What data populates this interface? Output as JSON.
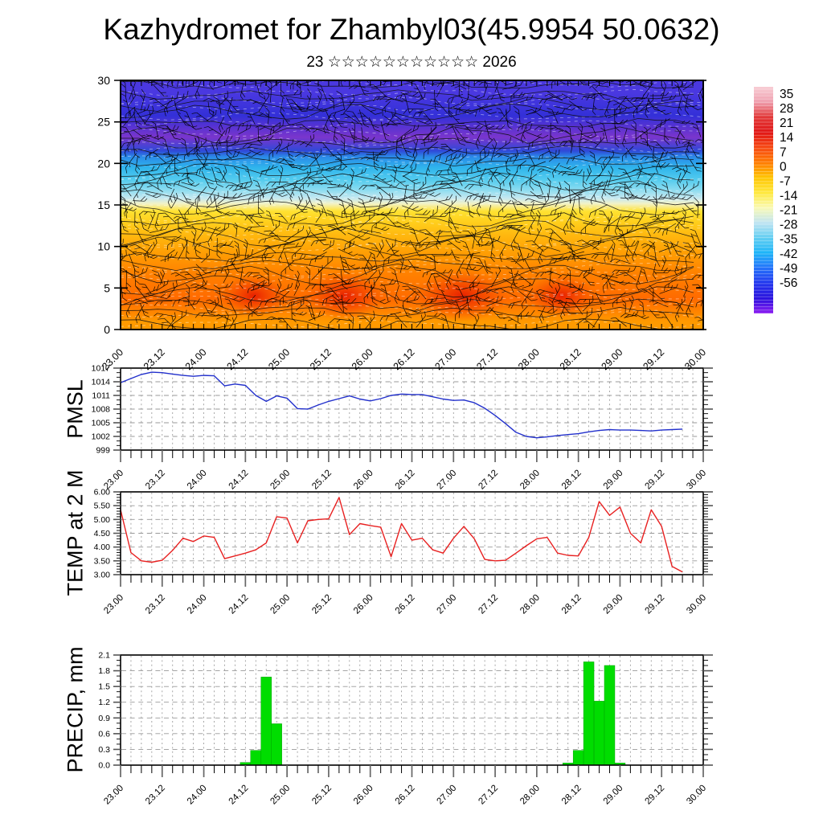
{
  "header": {
    "title": "Kazhydromet for Zhambyl03(45.9954 50.0632)",
    "subtitle": "23 ☆☆☆☆☆☆☆☆☆☆☆ 2026"
  },
  "panels": {
    "cross_section": {
      "label": ""
    },
    "pmsl": {
      "label": "PMSL"
    },
    "temp": {
      "label": "TEMP at 2 M"
    },
    "precip": {
      "label": "PRECIP, mm"
    }
  },
  "colorbar": {
    "labels": [
      "35",
      "28",
      "21",
      "14",
      "7",
      "0",
      "-7",
      "-14",
      "-21",
      "-28",
      "-35",
      "-42",
      "-49",
      "-56"
    ],
    "colors": [
      "#f8ccd4",
      "#ef9fae",
      "#e23838",
      "#e01616",
      "#f64812",
      "#ff7a00",
      "#ffc400",
      "#ffe83c",
      "#fafab4",
      "#bfe4f2",
      "#62cef2",
      "#1cb4f8",
      "#2472fa",
      "#2236ee",
      "#2a12dd",
      "#8c1cf2"
    ]
  },
  "chart_data": [
    {
      "type": "heatmap",
      "name": "temperature-height cross-section with wind barbs",
      "x_range": [
        23,
        30
      ],
      "x_tick_labels": [
        "23.00",
        "23.12",
        "24.00",
        "24.12",
        "25.00",
        "25.12",
        "26.00",
        "26.12",
        "27.00",
        "27.12",
        "28.00",
        "28.12",
        "29.00",
        "29.12",
        "30.00"
      ],
      "x_tick_every_hours": 3,
      "x_label_every_hours": 12,
      "y_range": [
        0,
        30
      ],
      "y_tick_labels": [
        "30",
        "25",
        "20",
        "15",
        "10",
        "5",
        "0"
      ],
      "colorbar_levels": [
        35,
        28,
        21,
        14,
        7,
        0,
        -7,
        -14,
        -21,
        -28,
        -35,
        -42,
        -49,
        -56
      ],
      "height_bands": [
        {
          "height_range": [
            27,
            30
          ],
          "approx_temp_c": -50,
          "color": "#4a38e0"
        },
        {
          "height_range": [
            24.5,
            27
          ],
          "approx_temp_c": -49,
          "color": "#3330d8"
        },
        {
          "height_range": [
            21.8,
            24.5
          ],
          "approx_temp_c": -56,
          "color": "#7a35cc"
        },
        {
          "height_range": [
            21.2,
            21.8
          ],
          "approx_temp_c": -45,
          "color": "#2f49d8"
        },
        {
          "height_range": [
            20.4,
            21.2
          ],
          "approx_temp_c": -38,
          "color": "#2b8ae8"
        },
        {
          "height_range": [
            18.6,
            20.4
          ],
          "approx_temp_c": -32,
          "color": "#2fb4ec"
        },
        {
          "height_range": [
            17.4,
            18.6
          ],
          "approx_temp_c": -26,
          "color": "#55ccee"
        },
        {
          "height_range": [
            16.2,
            17.4
          ],
          "approx_temp_c": -21,
          "color": "#8cdcf0"
        },
        {
          "height_range": [
            15.4,
            16.2
          ],
          "approx_temp_c": -16,
          "color": "#c6e8f0"
        },
        {
          "height_range": [
            14.9,
            15.4
          ],
          "approx_temp_c": -12,
          "color": "#f2f2c6"
        },
        {
          "height_range": [
            13.6,
            14.9
          ],
          "approx_temp_c": -8,
          "color": "#ffe232"
        },
        {
          "height_range": [
            12.2,
            13.6
          ],
          "approx_temp_c": -4,
          "color": "#ffce1c"
        },
        {
          "height_range": [
            10.2,
            12.2
          ],
          "approx_temp_c": 0,
          "color": "#ffb60e"
        },
        {
          "height_range": [
            8.2,
            10.2
          ],
          "approx_temp_c": 4,
          "color": "#ff9e04"
        },
        {
          "height_range": [
            5.5,
            8.2
          ],
          "approx_temp_c": 9,
          "color": "#ff8200"
        },
        {
          "height_range": [
            1.8,
            5.5
          ],
          "approx_temp_c": 14,
          "color": "#ff6a00"
        },
        {
          "height_range": [
            0,
            1.8
          ],
          "approx_temp_c": 10,
          "color": "#ff9a00"
        }
      ],
      "warm_cores_t": [
        24.6,
        25.7,
        27.1,
        28.3
      ],
      "overlays": [
        "wind-barbs",
        "black contour lines",
        "white dashed contour lines"
      ]
    },
    {
      "type": "line",
      "name": "PMSL",
      "color": "#2230cc",
      "ylim": [
        999,
        1017
      ],
      "y_major": 3,
      "y_minor": 1,
      "y_tick_labels": [
        "999",
        "1002",
        "1005",
        "1008",
        "1011",
        "1014",
        "1017"
      ],
      "t_start": 23.0,
      "t_step": 0.125,
      "values": [
        1013.8,
        1014.7,
        1015.6,
        1016.1,
        1016.0,
        1015.7,
        1015.4,
        1015.2,
        1015.4,
        1015.3,
        1013.1,
        1013.5,
        1013.2,
        1011.0,
        1009.7,
        1010.9,
        1010.4,
        1008.1,
        1008.0,
        1008.9,
        1009.7,
        1010.3,
        1010.9,
        1010.2,
        1009.8,
        1010.3,
        1011.0,
        1011.3,
        1011.2,
        1011.2,
        1010.7,
        1010.2,
        1009.9,
        1010.0,
        1009.4,
        1008.2,
        1006.6,
        1004.8,
        1002.9,
        1002.0,
        1001.7,
        1001.9,
        1002.2,
        1002.4,
        1002.6,
        1003.0,
        1003.3,
        1003.5,
        1003.4,
        1003.4,
        1003.3,
        1003.2,
        1003.4,
        1003.5,
        1003.6
      ]
    },
    {
      "type": "line",
      "name": "TEMP at 2 M",
      "color": "#e82020",
      "ylim": [
        3.0,
        6.0
      ],
      "y_major": 0.5,
      "y_minor": 0.1,
      "y_tick_labels": [
        "3.00",
        "3.50",
        "4.00",
        "4.50",
        "5.00",
        "5.50",
        "6.00"
      ],
      "t_start": 23.0,
      "t_step": 0.125,
      "values": [
        5.35,
        3.8,
        3.5,
        3.45,
        3.52,
        3.88,
        4.32,
        4.2,
        4.4,
        4.35,
        3.58,
        3.68,
        3.78,
        3.9,
        4.15,
        5.1,
        5.05,
        4.15,
        4.95,
        5.0,
        5.02,
        5.8,
        4.45,
        4.85,
        4.78,
        4.72,
        3.65,
        4.85,
        4.25,
        4.32,
        3.9,
        3.78,
        4.32,
        4.75,
        4.3,
        3.55,
        3.5,
        3.52,
        3.78,
        4.05,
        4.3,
        4.35,
        3.78,
        3.7,
        3.68,
        4.35,
        5.65,
        5.15,
        5.45,
        4.5,
        4.15,
        5.35,
        4.75,
        3.3,
        3.1
      ]
    },
    {
      "type": "bar",
      "name": "PRECIP, mm",
      "color": "#00dd00",
      "ylim": [
        0,
        2.1
      ],
      "y_major": 0.3,
      "y_minor": 0.1,
      "y_tick_labels": [
        "0.0",
        "0.3",
        "0.6",
        "0.9",
        "1.2",
        "1.5",
        "1.8",
        "2.1"
      ],
      "t_start": 23.0,
      "t_step": 0.125,
      "values": [
        0,
        0,
        0,
        0,
        0,
        0,
        0,
        0,
        0,
        0,
        0,
        0,
        0.05,
        0.28,
        1.68,
        0.79,
        0,
        0,
        0,
        0,
        0,
        0,
        0,
        0,
        0,
        0,
        0,
        0,
        0,
        0,
        0,
        0,
        0,
        0,
        0,
        0,
        0,
        0,
        0,
        0,
        0,
        0,
        0,
        0.04,
        0.28,
        1.97,
        1.22,
        1.9,
        0.04,
        0,
        0,
        0,
        0,
        0,
        0
      ]
    }
  ]
}
